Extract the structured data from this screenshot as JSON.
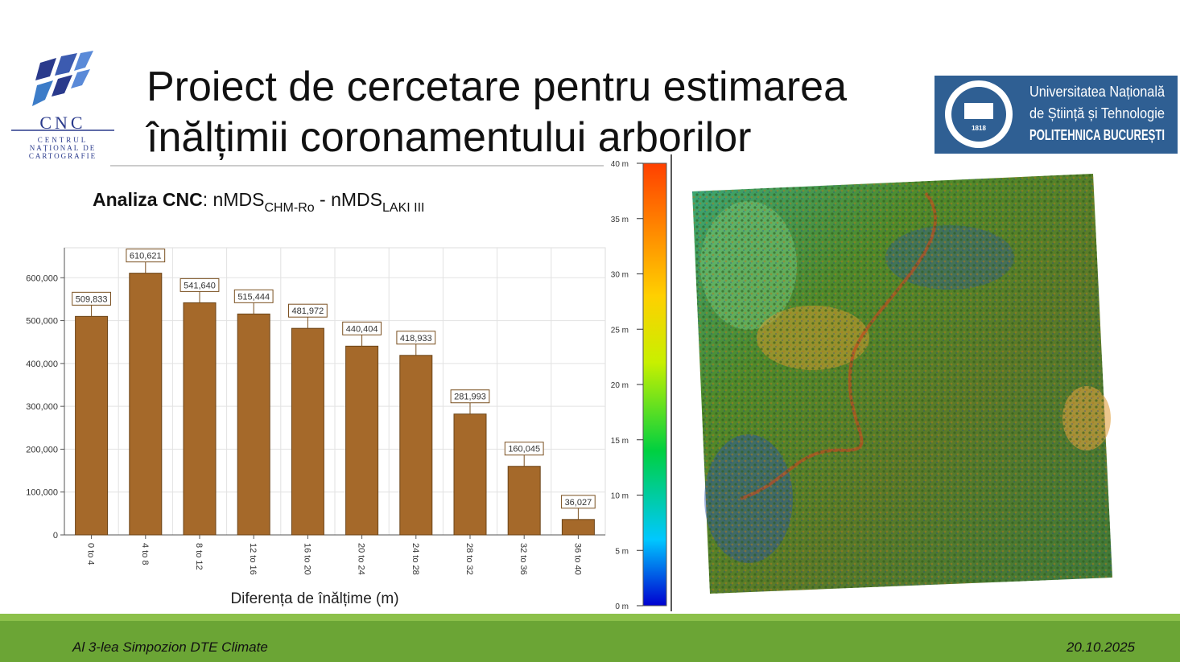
{
  "header": {
    "title_lines": [
      "Proiect de cercetare pentru estimarea",
      "înălțimii coronamentului arborilor"
    ]
  },
  "logo_cnc": {
    "abbr": "CNC",
    "lines": [
      "CENTRUL",
      "NAȚIONAL DE",
      "CARTOGRAFIE"
    ]
  },
  "logo_upb": {
    "lines": [
      "Universitatea Națională",
      "de Știință și Tehnologie",
      "POLITEHNICA BUCUREȘTI"
    ],
    "year": "1818"
  },
  "subtitle": {
    "bold": "Analiza CNC",
    "part1": ": nMDS",
    "sub1": "CHM-Ro",
    "part2": " - nMDS",
    "sub2": "LAKI III"
  },
  "chart_data": {
    "type": "bar",
    "categories": [
      "0 to 4",
      "4 to 8",
      "8 to 12",
      "12 to 16",
      "16 to 20",
      "20 to 24",
      "24 to 28",
      "28 to 32",
      "32 to 36",
      "36 to 40"
    ],
    "values": [
      509833,
      610621,
      541640,
      515444,
      481972,
      440404,
      418933,
      281993,
      160045,
      36027
    ],
    "value_labels": [
      "509,833",
      "610,621",
      "541,640",
      "515,444",
      "481,972",
      "440,404",
      "418,933",
      "281,993",
      "160,045",
      "36,027"
    ],
    "color": "#a5692a",
    "ylim": [
      0,
      670000
    ],
    "yticks": [
      0,
      {
        "value": 100000,
        "label": "100,000"
      },
      {
        "value": 200000,
        "label": "200,000"
      },
      {
        "value": 300000,
        "label": "300,000"
      },
      {
        "value": 400000,
        "label": "400,000"
      },
      {
        "value": 500000,
        "label": "500,000"
      },
      {
        "value": 600000,
        "label": "600,000"
      }
    ],
    "x_label": "Diferența de înălțime (m)",
    "grid": true
  },
  "colorbar": {
    "range": [
      0,
      40
    ],
    "ticks": [
      {
        "value": 0,
        "label": "0 m"
      },
      {
        "value": 5,
        "label": "5 m"
      },
      {
        "value": 10,
        "label": "10 m"
      },
      {
        "value": 15,
        "label": "15 m"
      },
      {
        "value": 20,
        "label": "20 m"
      },
      {
        "value": 25,
        "label": "25 m"
      },
      {
        "value": 30,
        "label": "30 m"
      },
      {
        "value": 35,
        "label": "35 m"
      },
      {
        "value": 40,
        "label": "40 m"
      }
    ]
  },
  "footer": {
    "left": "Al 3-lea Simpozion DTE Climate",
    "right": "20.10.2025"
  }
}
